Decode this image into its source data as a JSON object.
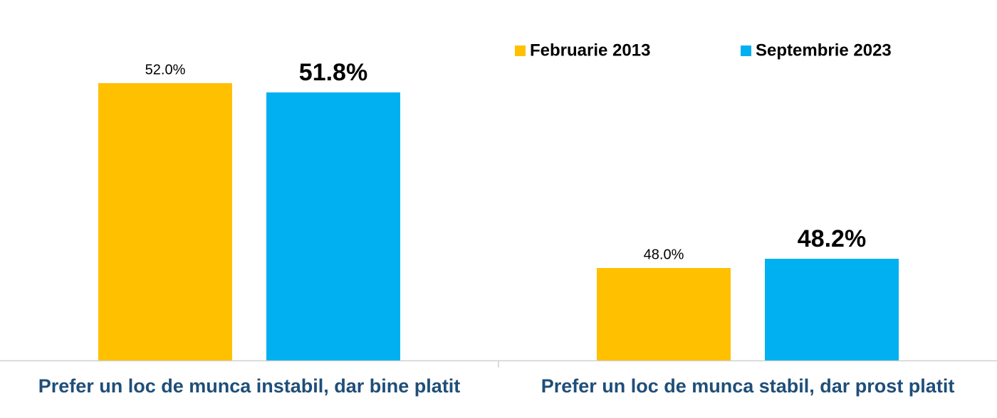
{
  "chart_data": {
    "type": "bar",
    "categories": [
      "Prefer un loc de munca instabil, dar bine platit",
      "Prefer un loc de munca stabil, dar prost platit"
    ],
    "series": [
      {
        "name": "Februarie 2013",
        "color": "#ffc000",
        "values": [
          52.0,
          48.0
        ],
        "value_labels": [
          "52.0%",
          "48.0%"
        ]
      },
      {
        "name": "Septembrie 2023",
        "color": "#00b0f0",
        "values": [
          51.8,
          48.2
        ],
        "value_labels": [
          "51.8%",
          "48.2%"
        ]
      }
    ],
    "ylim": [
      46,
      53
    ],
    "legend": "top-right"
  }
}
